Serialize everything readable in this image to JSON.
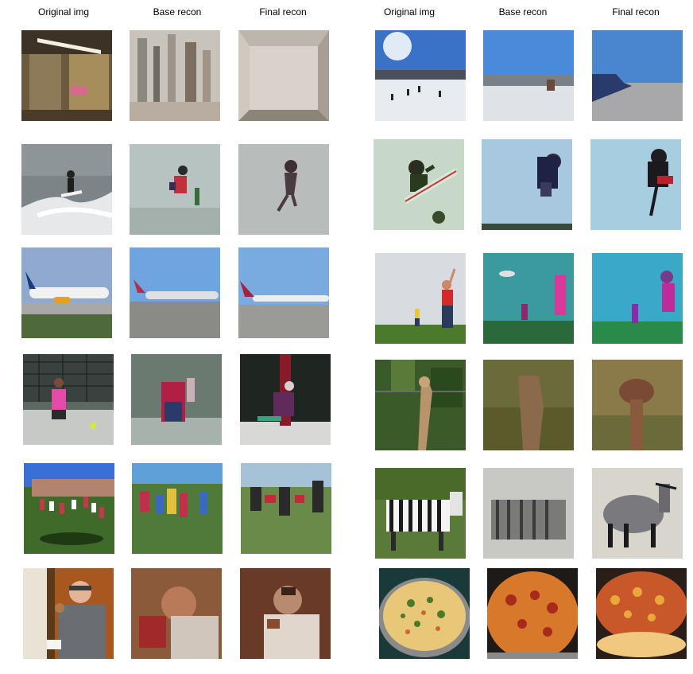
{
  "headers": {
    "left": [
      "Original img",
      "Base recon",
      "Final recon"
    ],
    "right": [
      "Original img",
      "Base recon",
      "Final recon"
    ]
  },
  "left_rows": [
    {
      "subject": "mirrored hallway room",
      "kinds": [
        "original",
        "base",
        "final"
      ]
    },
    {
      "subject": "surfer on wave",
      "kinds": [
        "original",
        "base",
        "final"
      ]
    },
    {
      "subject": "airplane on runway",
      "kinds": [
        "original",
        "base",
        "final"
      ]
    },
    {
      "subject": "tennis player",
      "kinds": [
        "original",
        "base",
        "final"
      ]
    },
    {
      "subject": "kids playing soccer",
      "kinds": [
        "original",
        "base",
        "final"
      ]
    },
    {
      "subject": "man eating donut",
      "kinds": [
        "original",
        "base",
        "final"
      ]
    }
  ],
  "right_rows": [
    {
      "subject": "ski slope with sun",
      "kinds": [
        "original",
        "base",
        "final"
      ]
    },
    {
      "subject": "snowboarder in air",
      "kinds": [
        "original",
        "base",
        "final"
      ]
    },
    {
      "subject": "people flying kite",
      "kinds": [
        "original",
        "base",
        "final"
      ]
    },
    {
      "subject": "giraffe in trees",
      "kinds": [
        "original",
        "base",
        "final"
      ]
    },
    {
      "subject": "zebra in grass",
      "kinds": [
        "original",
        "base",
        "final"
      ]
    },
    {
      "subject": "pizza on pan",
      "kinds": [
        "original",
        "base",
        "final"
      ]
    }
  ]
}
